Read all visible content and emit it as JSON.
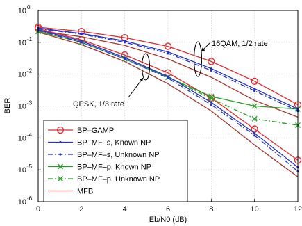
{
  "chart_data": {
    "type": "line",
    "xlabel": "Eb/N0 (dB)",
    "ylabel": "BER",
    "xlim": [
      0,
      12
    ],
    "ylim_log10": [
      -6,
      0
    ],
    "y_scale": "log",
    "grid": true,
    "legend_position": "bottom-left",
    "x_ticks": [
      0,
      2,
      4,
      6,
      8,
      10,
      12
    ],
    "y_ticks": [
      {
        "base": "10",
        "exp": "0"
      },
      {
        "base": "10",
        "exp": "-1"
      },
      {
        "base": "10",
        "exp": "-2"
      },
      {
        "base": "10",
        "exp": "-3"
      },
      {
        "base": "10",
        "exp": "-4"
      },
      {
        "base": "10",
        "exp": "-5"
      },
      {
        "base": "10",
        "exp": "-6"
      }
    ],
    "annotations": [
      {
        "text": "16QAM, 1/2 rate"
      },
      {
        "text": "QPSK, 1/3 rate"
      }
    ],
    "series": [
      {
        "name": "BP–GAMP",
        "color": "#e8262a",
        "style": "solid",
        "marker": "circle",
        "group": "16QAM",
        "x": [
          0,
          2,
          4,
          6,
          8,
          10,
          12
        ],
        "y": [
          0.3,
          0.22,
          0.14,
          0.075,
          0.025,
          0.006,
          0.0011
        ]
      },
      {
        "name": "BP–GAMP",
        "color": "#e8262a",
        "style": "solid",
        "marker": "circle",
        "group": "QPSK",
        "x": [
          0,
          2,
          4,
          6,
          8,
          10,
          12
        ],
        "y": [
          0.27,
          0.12,
          0.04,
          0.011,
          0.0018,
          0.00019,
          2e-05
        ]
      },
      {
        "name": "BP–MF–s, Known NP",
        "color": "#2233cc",
        "style": "solid",
        "marker": "dot",
        "group": "16QAM",
        "x": [
          0,
          2,
          4,
          6,
          8,
          10,
          12
        ],
        "y": [
          0.28,
          0.19,
          0.11,
          0.05,
          0.015,
          0.0035,
          0.0008
        ]
      },
      {
        "name": "BP–MF–s, Known NP",
        "color": "#2233cc",
        "style": "solid",
        "marker": "dot",
        "group": "QPSK",
        "x": [
          0,
          2,
          4,
          6,
          8,
          10,
          12
        ],
        "y": [
          0.25,
          0.11,
          0.033,
          0.0085,
          0.0013,
          0.00014,
          1.2e-05
        ]
      },
      {
        "name": "BP–MF–s, Unknown NP",
        "color": "#2233cc",
        "style": "dashdot",
        "marker": "dot",
        "group": "16QAM",
        "x": [
          0,
          2,
          4,
          6,
          8,
          10,
          12
        ],
        "y": [
          0.27,
          0.18,
          0.1,
          0.045,
          0.013,
          0.003,
          0.0007
        ]
      },
      {
        "name": "BP–MF–s, Unknown NP",
        "color": "#2233cc",
        "style": "dashdot",
        "marker": "dot",
        "group": "QPSK",
        "x": [
          0,
          2,
          4,
          6,
          8,
          10,
          12
        ],
        "y": [
          0.24,
          0.1,
          0.03,
          0.0075,
          0.0011,
          0.00012,
          9e-06
        ]
      },
      {
        "name": "BP–MF–p, Known NP",
        "color": "#22a022",
        "style": "solid",
        "marker": "x",
        "group": "QPSK",
        "x": [
          0,
          2,
          4,
          6,
          8,
          10,
          12
        ],
        "y": [
          0.22,
          0.1,
          0.03,
          0.008,
          0.002,
          0.001,
          0.0008
        ]
      },
      {
        "name": "BP–MF–p, Unknown NP",
        "color": "#22a022",
        "style": "dashdot",
        "marker": "x",
        "group": "QPSK",
        "x": [
          0,
          2,
          4,
          6,
          8,
          10,
          12
        ],
        "y": [
          0.22,
          0.1,
          0.03,
          0.008,
          0.0017,
          0.0004,
          0.00025
        ]
      },
      {
        "name": "MFB",
        "color": "#a8352a",
        "style": "solid",
        "marker": "none",
        "group": "16QAM",
        "x": [
          0,
          2,
          4,
          6,
          8,
          10,
          12
        ],
        "y": [
          0.23,
          0.15,
          0.08,
          0.03,
          0.008,
          0.0015,
          0.00045
        ]
      },
      {
        "name": "MFB",
        "color": "#a8352a",
        "style": "solid",
        "marker": "none",
        "group": "QPSK",
        "x": [
          0,
          2,
          4,
          6,
          8,
          10,
          12
        ],
        "y": [
          0.21,
          0.085,
          0.025,
          0.005,
          0.0007,
          6e-05,
          6e-06
        ]
      }
    ],
    "legend": [
      {
        "label": "BP–GAMP",
        "color": "#e8262a",
        "style": "solid",
        "marker": "circle"
      },
      {
        "label": "BP–MF–s, Known NP",
        "color": "#2233cc",
        "style": "solid",
        "marker": "dot"
      },
      {
        "label": "BP–MF–s, Unknown NP",
        "color": "#2233cc",
        "style": "dashdot",
        "marker": "dot"
      },
      {
        "label": "BP–MF–p, Known NP",
        "color": "#22a022",
        "style": "solid",
        "marker": "x"
      },
      {
        "label": "BP–MF–p, Unknown NP",
        "color": "#22a022",
        "style": "dashdot",
        "marker": "x"
      },
      {
        "label": "MFB",
        "color": "#a8352a",
        "style": "solid",
        "marker": "none"
      }
    ]
  }
}
